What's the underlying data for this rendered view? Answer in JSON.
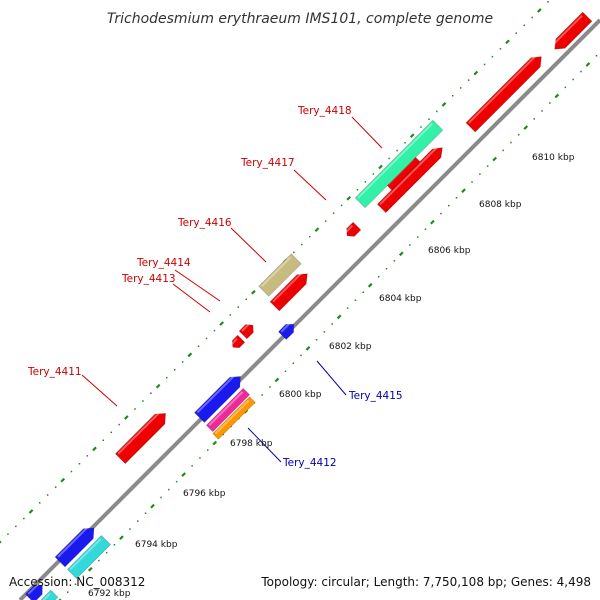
{
  "title": "Trichodesmium erythraeum IMS101, complete genome",
  "footer": {
    "accession": "Accession: NC_008312",
    "summary": "Topology: circular; Length: 7,750,108 bp; Genes: 4,498"
  },
  "colors": {
    "backbone": "#8a8a8a",
    "ruler": "#1a8c1a",
    "label_red": "#cc0000",
    "label_blue": "#0000aa"
  },
  "ruler_labels": [
    "6792 kbp",
    "6794 kbp",
    "6796 kbp",
    "6798 kbp",
    "6800 kbp",
    "6802 kbp",
    "6804 kbp",
    "6806 kbp",
    "6808 kbp",
    "6810 kbp"
  ],
  "gene_labels": [
    {
      "text": "Tery_4418",
      "color": "red"
    },
    {
      "text": "Tery_4417",
      "color": "red"
    },
    {
      "text": "Tery_4416",
      "color": "red"
    },
    {
      "text": "Tery_4414",
      "color": "red"
    },
    {
      "text": "Tery_4413",
      "color": "red"
    },
    {
      "text": "Tery_4411",
      "color": "red"
    },
    {
      "text": "Tery_4415",
      "color": "blue"
    },
    {
      "text": "Tery_4412",
      "color": "blue"
    }
  ],
  "features": [
    {
      "color": "#ee0000"
    },
    {
      "color": "#ee0000"
    },
    {
      "color": "#ee0000"
    },
    {
      "color": "#33f0a8"
    },
    {
      "color": "#ee0000"
    },
    {
      "color": "#ee0000"
    },
    {
      "color": "#c8bb80"
    },
    {
      "color": "#ee0000"
    },
    {
      "color": "#ee0000"
    },
    {
      "color": "#ee0000"
    },
    {
      "color": "#1a1aee"
    },
    {
      "color": "#ee0000"
    },
    {
      "color": "#1a1aee"
    },
    {
      "color": "#ee2a9a"
    },
    {
      "color": "#ff9500"
    },
    {
      "color": "#1a1aee"
    },
    {
      "color": "#33d8d8"
    },
    {
      "color": "#1a1aee"
    },
    {
      "color": "#33d8d8"
    }
  ]
}
